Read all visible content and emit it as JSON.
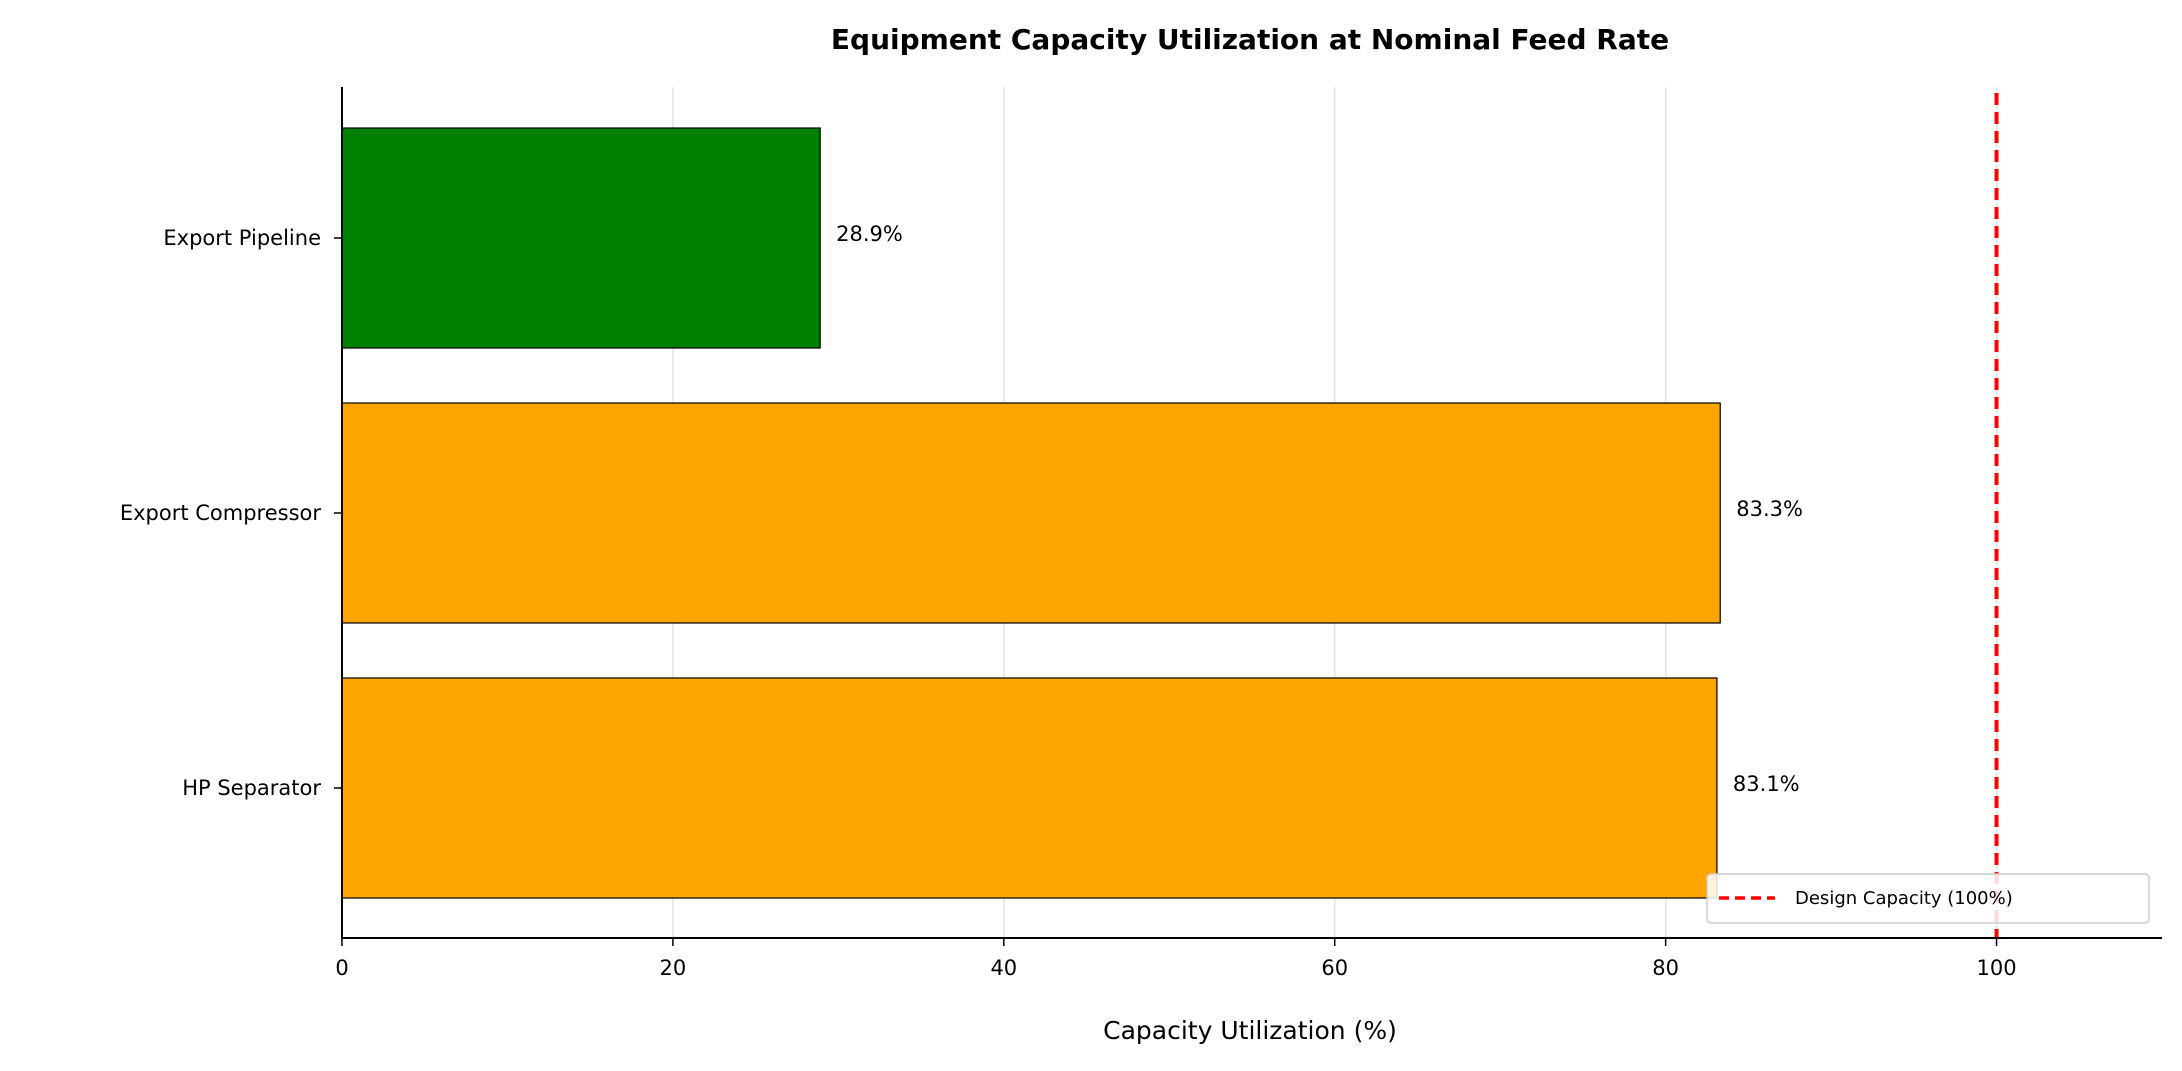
{
  "chart_data": {
    "type": "bar",
    "orientation": "horizontal",
    "title": "Equipment Capacity Utilization at Nominal Feed Rate",
    "xlabel": "Capacity Utilization (%)",
    "ylabel": "",
    "xlim": [
      0,
      110
    ],
    "xticks": [
      0,
      20,
      40,
      60,
      80,
      100
    ],
    "grid": "vertical",
    "categories": [
      "HP Separator",
      "Export Compressor",
      "Export Pipeline"
    ],
    "values": [
      83.1,
      83.3,
      28.9
    ],
    "value_labels": [
      "83.1%",
      "83.3%",
      "28.9%"
    ],
    "bar_colors": [
      "#FFA500",
      "#FFA500",
      "#008000"
    ],
    "reference_line": {
      "value": 100,
      "label": "Design Capacity (100%)",
      "color": "#FF0000",
      "style": "dashed"
    },
    "legend": {
      "placement": "bottom-right",
      "entries": [
        "Design Capacity (100%)"
      ]
    }
  }
}
